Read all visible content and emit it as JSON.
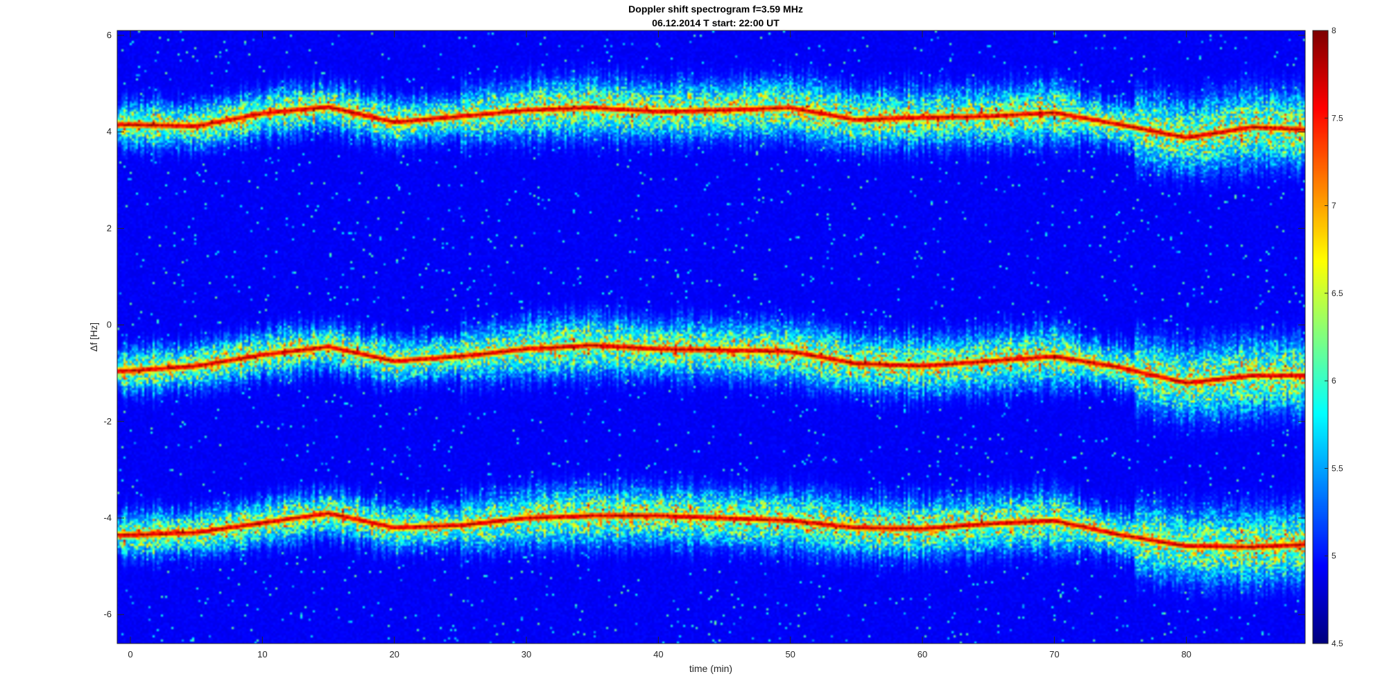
{
  "chart_data": {
    "type": "heatmap",
    "title": "Doppler shift spectrogram f=3.59 MHz",
    "subtitle": "06.12.2014   T start: 22:00 UT",
    "xlabel": "time (min)",
    "ylabel": "Δf [Hz]",
    "xlim": [
      -1,
      89
    ],
    "ylim": [
      -6.6,
      6.1
    ],
    "x_ticks": [
      0,
      10,
      20,
      30,
      40,
      50,
      60,
      70,
      80
    ],
    "y_ticks": [
      -6,
      -4,
      -2,
      0,
      2,
      4,
      6
    ],
    "colorbar": {
      "colormap": "jet",
      "range": [
        4.5,
        8
      ],
      "ticks": [
        4.5,
        5,
        5.5,
        6,
        6.5,
        7,
        7.5,
        8
      ]
    },
    "traces": [
      {
        "x": [
          0,
          5,
          10,
          15,
          20,
          25,
          30,
          35,
          40,
          45,
          50,
          55,
          60,
          65,
          70,
          75,
          80,
          85,
          89
        ],
        "y": [
          4.15,
          4.12,
          4.38,
          4.52,
          4.2,
          4.32,
          4.45,
          4.5,
          4.42,
          4.45,
          4.5,
          4.25,
          4.3,
          4.32,
          4.4,
          4.15,
          3.88,
          4.1,
          4.05
        ]
      },
      {
        "x": [
          0,
          5,
          10,
          15,
          20,
          25,
          30,
          35,
          40,
          45,
          50,
          55,
          60,
          65,
          70,
          75,
          80,
          85,
          89
        ],
        "y": [
          -0.95,
          -0.85,
          -0.62,
          -0.45,
          -0.75,
          -0.65,
          -0.5,
          -0.42,
          -0.5,
          -0.52,
          -0.55,
          -0.8,
          -0.85,
          -0.75,
          -0.65,
          -0.88,
          -1.2,
          -1.05,
          -1.05
        ]
      },
      {
        "x": [
          0,
          5,
          10,
          15,
          20,
          25,
          30,
          35,
          40,
          45,
          50,
          55,
          60,
          65,
          70,
          75,
          80,
          85,
          89
        ],
        "y": [
          -4.35,
          -4.3,
          -4.1,
          -3.9,
          -4.2,
          -4.15,
          -4.0,
          -3.95,
          -3.95,
          -4.0,
          -4.05,
          -4.2,
          -4.22,
          -4.12,
          -4.05,
          -4.35,
          -4.58,
          -4.6,
          -4.55
        ]
      }
    ]
  }
}
